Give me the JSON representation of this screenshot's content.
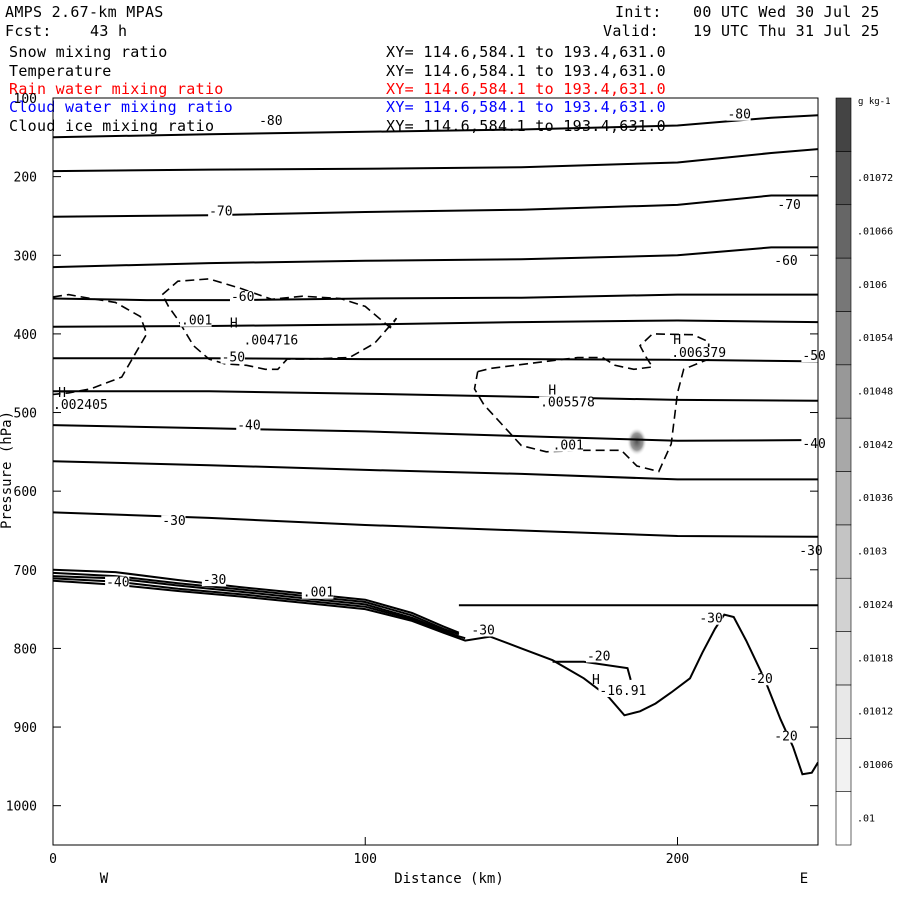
{
  "header": {
    "model": "AMPS 2.67-km MPAS",
    "fcst_label": "Fcst:",
    "fcst_value": "43 h",
    "init_label": "Init:",
    "init_value": "00 UTC Wed 30 Jul 25",
    "valid_label": "Valid:",
    "valid_value": "19 UTC Thu 31 Jul 25"
  },
  "fields": [
    {
      "name": "Snow mixing ratio",
      "xy": "XY= 114.6,584.1 to 193.4,631.0",
      "color": "#000000"
    },
    {
      "name": "Temperature",
      "xy": "XY= 114.6,584.1 to 193.4,631.0",
      "color": "#000000"
    },
    {
      "name": "Rain water mixing ratio",
      "xy": "XY= 114.6,584.1 to 193.4,631.0",
      "color": "#ff0000"
    },
    {
      "name": "Cloud water mixing ratio",
      "xy": "XY= 114.6,584.1 to 193.4,631.0",
      "color": "#0000ff"
    },
    {
      "name": "Cloud ice mixing ratio",
      "xy": "XY= 114.6,584.1 to 193.4,631.0",
      "color": "#000000"
    }
  ],
  "chart_data": {
    "type": "contour",
    "xlabel": "Distance (km)",
    "ylabel": "Pressure (hPa)",
    "xlim": [
      0,
      245
    ],
    "ylim": [
      100,
      1050
    ],
    "x_ticks": [
      0,
      100,
      200
    ],
    "y_ticks": [
      100,
      200,
      300,
      400,
      500,
      600,
      700,
      800,
      900,
      1000
    ],
    "left_label": "W",
    "right_label": "E",
    "temperature_contours": [
      {
        "level": -80,
        "points": [
          [
            0,
            150
          ],
          [
            50,
            146
          ],
          [
            100,
            143
          ],
          [
            150,
            140
          ],
          [
            200,
            135
          ],
          [
            230,
            125
          ],
          [
            245,
            122
          ]
        ]
      },
      {
        "level": -70,
        "points": [
          [
            0,
            193
          ],
          [
            50,
            191
          ],
          [
            100,
            190
          ],
          [
            150,
            188
          ],
          [
            200,
            182
          ],
          [
            230,
            170
          ],
          [
            245,
            165
          ]
        ]
      },
      {
        "level": -70,
        "points": [
          [
            0,
            251
          ],
          [
            50,
            249
          ],
          [
            100,
            245
          ],
          [
            150,
            242
          ],
          [
            200,
            236
          ],
          [
            230,
            224
          ],
          [
            245,
            224
          ]
        ]
      },
      {
        "level": -60,
        "points": [
          [
            0,
            315
          ],
          [
            50,
            310
          ],
          [
            100,
            307
          ],
          [
            150,
            305
          ],
          [
            200,
            300
          ],
          [
            230,
            290
          ],
          [
            245,
            290
          ]
        ]
      },
      {
        "level": -60,
        "points": [
          [
            0,
            355
          ],
          [
            30,
            357
          ],
          [
            60,
            357
          ],
          [
            100,
            355
          ],
          [
            150,
            354
          ],
          [
            200,
            350
          ],
          [
            230,
            350
          ],
          [
            245,
            350
          ]
        ]
      },
      {
        "level": -50,
        "points": [
          [
            0,
            391
          ],
          [
            50,
            390
          ],
          [
            100,
            388
          ],
          [
            150,
            385
          ],
          [
            200,
            383
          ],
          [
            245,
            385
          ]
        ]
      },
      {
        "level": -50,
        "points": [
          [
            0,
            431
          ],
          [
            50,
            431
          ],
          [
            100,
            432
          ],
          [
            150,
            432
          ],
          [
            200,
            433
          ],
          [
            245,
            435
          ]
        ]
      },
      {
        "level": -40,
        "points": [
          [
            0,
            473
          ],
          [
            50,
            473
          ],
          [
            100,
            476
          ],
          [
            150,
            480
          ],
          [
            200,
            484
          ],
          [
            245,
            485
          ]
        ]
      },
      {
        "level": -40,
        "points": [
          [
            0,
            516
          ],
          [
            50,
            520
          ],
          [
            100,
            524
          ],
          [
            150,
            530
          ],
          [
            200,
            536
          ],
          [
            245,
            535
          ]
        ]
      },
      {
        "level": -40,
        "points": [
          [
            0,
            562
          ],
          [
            50,
            567
          ],
          [
            100,
            573
          ],
          [
            150,
            578
          ],
          [
            200,
            585
          ],
          [
            245,
            585
          ]
        ]
      },
      {
        "level": -30,
        "points": [
          [
            0,
            627
          ],
          [
            50,
            634
          ],
          [
            100,
            643
          ],
          [
            150,
            650
          ],
          [
            200,
            657
          ],
          [
            245,
            658
          ]
        ]
      },
      {
        "level": -30,
        "points": [
          [
            130,
            745
          ],
          [
            200,
            745
          ],
          [
            245,
            745
          ]
        ]
      },
      {
        "level": -20,
        "points": [
          [
            160,
            817
          ],
          [
            170,
            817
          ],
          [
            184,
            825
          ],
          [
            185,
            840
          ]
        ]
      }
    ],
    "contour_labels": [
      {
        "text": "-80",
        "x": 66,
        "p": 133
      },
      {
        "text": "-80",
        "x": 216,
        "p": 125
      },
      {
        "text": "-70",
        "x": 50,
        "p": 248
      },
      {
        "text": "-70",
        "x": 232,
        "p": 240
      },
      {
        "text": "-60",
        "x": 57,
        "p": 357
      },
      {
        "text": "-60",
        "x": 231,
        "p": 311
      },
      {
        "text": "-50",
        "x": 54,
        "p": 434
      },
      {
        "text": "-50",
        "x": 240,
        "p": 432
      },
      {
        "text": "-40",
        "x": 59,
        "p": 520
      },
      {
        "text": "-40",
        "x": 240,
        "p": 544
      },
      {
        "text": "-30",
        "x": 35,
        "p": 642
      },
      {
        "text": "-30",
        "x": 239,
        "p": 680
      },
      {
        "text": "-40",
        "x": 17,
        "p": 720
      },
      {
        "text": "-30",
        "x": 48,
        "p": 717
      },
      {
        "text": ".001",
        "x": 80,
        "p": 733
      },
      {
        "text": "-30",
        "x": 134,
        "p": 781
      },
      {
        "text": "-30",
        "x": 207,
        "p": 766
      },
      {
        "text": "-20",
        "x": 171,
        "p": 814
      },
      {
        "text": "-16.91",
        "x": 175,
        "p": 858
      },
      {
        "text": "-20",
        "x": 223,
        "p": 843
      },
      {
        "text": "-20",
        "x": 231,
        "p": 916
      },
      {
        "text": ".001",
        "x": 41,
        "p": 387
      },
      {
        "text": ".004716",
        "x": 61,
        "p": 412
      },
      {
        "text": ".002405",
        "x": 0,
        "p": 494
      },
      {
        "text": ".005578",
        "x": 156,
        "p": 491
      },
      {
        "text": ".006379",
        "x": 198,
        "p": 428
      },
      {
        "text": ".001",
        "x": 160,
        "p": 546
      }
    ],
    "maxima_markers": [
      {
        "text": "H",
        "x": 56,
        "p": 392
      },
      {
        "text": "H",
        "x": 1,
        "p": 480
      },
      {
        "text": "H",
        "x": 158,
        "p": 477
      },
      {
        "text": "H",
        "x": 198,
        "p": 413
      },
      {
        "text": "H",
        "x": 172,
        "p": 845
      }
    ],
    "snow_dashed_contours": [
      {
        "points": [
          [
            0,
            353
          ],
          [
            5,
            350
          ],
          [
            12,
            355
          ],
          [
            20,
            360
          ],
          [
            28,
            378
          ],
          [
            30,
            400
          ],
          [
            22,
            455
          ],
          [
            12,
            470
          ],
          [
            5,
            475
          ],
          [
            0,
            477
          ]
        ]
      },
      {
        "points": [
          [
            35,
            350
          ],
          [
            40,
            333
          ],
          [
            50,
            330
          ],
          [
            60,
            342
          ],
          [
            70,
            356
          ],
          [
            80,
            352
          ],
          [
            92,
            355
          ],
          [
            100,
            365
          ],
          [
            108,
            392
          ],
          [
            110,
            380
          ],
          [
            103,
            412
          ],
          [
            95,
            430
          ],
          [
            82,
            432
          ],
          [
            75,
            432
          ],
          [
            72,
            445
          ],
          [
            68,
            445
          ],
          [
            62,
            440
          ],
          [
            55,
            438
          ],
          [
            50,
            432
          ],
          [
            45,
            415
          ],
          [
            40,
            382
          ],
          [
            37,
            365
          ],
          [
            35,
            350
          ]
        ]
      },
      {
        "points": [
          [
            136,
            448
          ],
          [
            140,
            444
          ],
          [
            148,
            440
          ],
          [
            158,
            435
          ],
          [
            168,
            430
          ],
          [
            176,
            430
          ],
          [
            180,
            440
          ],
          [
            186,
            445
          ],
          [
            192,
            442
          ],
          [
            190,
            430
          ],
          [
            188,
            415
          ],
          [
            192,
            400
          ],
          [
            205,
            401
          ],
          [
            210,
            410
          ],
          [
            210,
            432
          ],
          [
            202,
            445
          ],
          [
            200,
            475
          ],
          [
            198,
            540
          ],
          [
            194,
            575
          ],
          [
            187,
            568
          ],
          [
            182,
            548
          ],
          [
            170,
            548
          ],
          [
            158,
            550
          ],
          [
            150,
            542
          ],
          [
            138,
            490
          ],
          [
            135,
            470
          ],
          [
            136,
            448
          ]
        ]
      }
    ],
    "cloud_water_max": {
      "x": 187,
      "p": 537
    },
    "terrain_line": [
      [
        0,
        714
      ],
      [
        20,
        719
      ],
      [
        40,
        727
      ],
      [
        60,
        734
      ],
      [
        80,
        742
      ],
      [
        100,
        750
      ],
      [
        115,
        765
      ],
      [
        125,
        780
      ],
      [
        132,
        790
      ],
      [
        140,
        785
      ],
      [
        150,
        800
      ],
      [
        160,
        815
      ],
      [
        170,
        838
      ],
      [
        178,
        862
      ],
      [
        183,
        885
      ],
      [
        188,
        880
      ],
      [
        193,
        870
      ],
      [
        198,
        856
      ],
      [
        204,
        838
      ],
      [
        208,
        805
      ],
      [
        212,
        775
      ],
      [
        215,
        757
      ],
      [
        218,
        760
      ],
      [
        222,
        790
      ],
      [
        228,
        840
      ],
      [
        233,
        890
      ],
      [
        237,
        925
      ],
      [
        240,
        960
      ],
      [
        243,
        958
      ],
      [
        245,
        945
      ]
    ],
    "dense_lines": [
      [
        [
          0,
          700
        ],
        [
          20,
          703
        ],
        [
          40,
          713
        ],
        [
          60,
          722
        ],
        [
          80,
          730
        ],
        [
          100,
          738
        ],
        [
          115,
          755
        ],
        [
          125,
          772
        ],
        [
          130,
          780
        ]
      ],
      [
        [
          0,
          704
        ],
        [
          20,
          708
        ],
        [
          40,
          717
        ],
        [
          60,
          725
        ],
        [
          80,
          733
        ],
        [
          100,
          741
        ],
        [
          115,
          758
        ],
        [
          125,
          775
        ],
        [
          130,
          782
        ]
      ],
      [
        [
          0,
          708
        ],
        [
          20,
          711
        ],
        [
          40,
          720
        ],
        [
          60,
          728
        ],
        [
          80,
          736
        ],
        [
          100,
          744
        ],
        [
          115,
          761
        ],
        [
          125,
          777
        ],
        [
          130,
          785
        ]
      ],
      [
        [
          0,
          711
        ],
        [
          20,
          715
        ],
        [
          40,
          724
        ],
        [
          60,
          731
        ],
        [
          80,
          739
        ],
        [
          100,
          747
        ],
        [
          115,
          763
        ],
        [
          125,
          779
        ],
        [
          132,
          787
        ]
      ]
    ],
    "colorbar": {
      "unit": "g kg-1",
      "levels": [
        ".01",
        ".01006",
        ".01012",
        ".01018",
        ".01024",
        ".0103",
        ".01036",
        ".01042",
        ".01048",
        ".01054",
        ".0106",
        ".01066",
        ".01072"
      ],
      "colors": [
        "#ffffff",
        "#f2f2f2",
        "#e8e8e8",
        "#dedede",
        "#d2d2d2",
        "#c4c4c4",
        "#b6b6b6",
        "#a8a8a8",
        "#989898",
        "#888888",
        "#777777",
        "#666666",
        "#555555",
        "#444444"
      ]
    }
  }
}
